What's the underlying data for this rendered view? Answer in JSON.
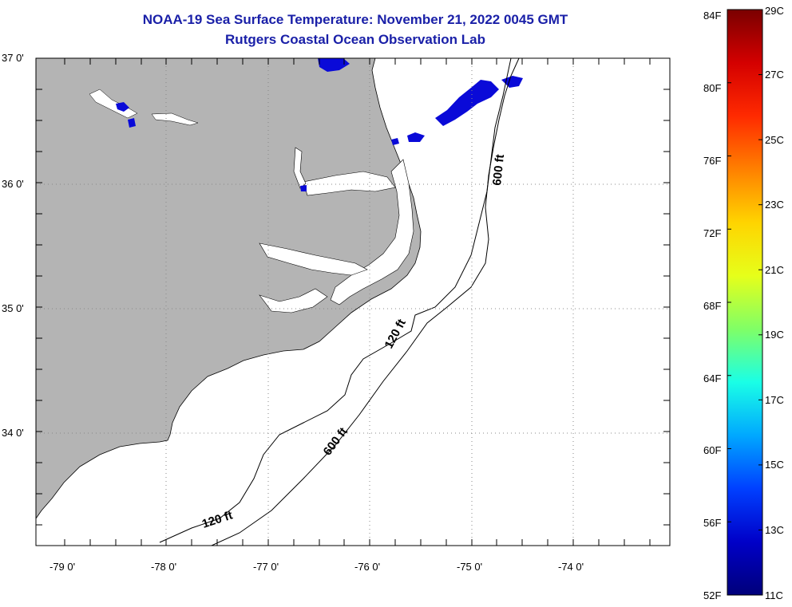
{
  "title": "NOAA-19 Sea Surface Temperature:  November 21, 2022 0045 GMT",
  "subtitle": "Rutgers Coastal Ocean Observation Lab",
  "colors": {
    "title": "#1a20a8",
    "land": "#b4b4b4",
    "cloud": "#0a0ad8",
    "ocean_nodata": "#ffffff"
  },
  "lat_labels": [
    "37 0'",
    "36 0'",
    "35 0'",
    "34 0'"
  ],
  "lon_labels": [
    "-79 0'",
    "-78 0'",
    "-77 0'",
    "-76 0'",
    "-75 0'",
    "-74 0'"
  ],
  "contour_labels": [
    "600 ft",
    "120 ft",
    "600 ft",
    "120 ft"
  ],
  "colorbar": {
    "fahrenheit": [
      "84F",
      "80F",
      "76F",
      "72F",
      "68F",
      "64F",
      "60F",
      "56F",
      "52F"
    ],
    "celsius": [
      "29C",
      "27C",
      "25C",
      "23C",
      "21C",
      "19C",
      "17C",
      "15C",
      "13C",
      "11C"
    ],
    "gradient_colors": [
      "#7a0000",
      "#d40000",
      "#ff2a00",
      "#ff8000",
      "#ffd400",
      "#e6ff1a",
      "#80ff66",
      "#1affe6",
      "#00a8ff",
      "#0040ff",
      "#0000c8",
      "#00007a"
    ]
  }
}
